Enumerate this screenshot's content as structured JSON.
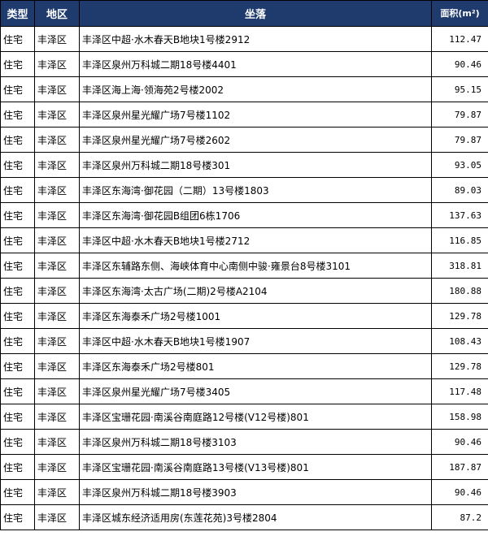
{
  "table": {
    "headers": [
      "类型",
      "地区",
      "坐落",
      "面积(m²)"
    ],
    "rows": [
      [
        "住宅",
        "丰泽区",
        "丰泽区中超·水木春天B地块1号楼2912",
        "112.47"
      ],
      [
        "住宅",
        "丰泽区",
        "丰泽区泉州万科城二期18号楼4401",
        "90.46"
      ],
      [
        "住宅",
        "丰泽区",
        "丰泽区海上海·领海苑2号楼2002",
        "95.15"
      ],
      [
        "住宅",
        "丰泽区",
        "丰泽区泉州星光耀广场7号楼1102",
        "79.87"
      ],
      [
        "住宅",
        "丰泽区",
        "丰泽区泉州星光耀广场7号楼2602",
        "79.87"
      ],
      [
        "住宅",
        "丰泽区",
        "丰泽区泉州万科城二期18号楼301",
        "93.05"
      ],
      [
        "住宅",
        "丰泽区",
        "丰泽区东海湾·御花园（二期）13号楼1803",
        "89.03"
      ],
      [
        "住宅",
        "丰泽区",
        "丰泽区东海湾·御花园B组团6栋1706",
        "137.63"
      ],
      [
        "住宅",
        "丰泽区",
        "丰泽区中超·水木春天B地块1号楼2712",
        "116.85"
      ],
      [
        "住宅",
        "丰泽区",
        "丰泽区东辅路东侧、海峡体育中心南侧中骏·雍景台8号楼3101",
        "318.81"
      ],
      [
        "住宅",
        "丰泽区",
        "丰泽区东海湾·太古广场(二期)2号楼A2104",
        "180.88"
      ],
      [
        "住宅",
        "丰泽区",
        "丰泽区东海泰禾广场2号楼1001",
        "129.78"
      ],
      [
        "住宅",
        "丰泽区",
        "丰泽区中超·水木春天B地块1号楼1907",
        "108.43"
      ],
      [
        "住宅",
        "丰泽区",
        "丰泽区东海泰禾广场2号楼801",
        "129.78"
      ],
      [
        "住宅",
        "丰泽区",
        "丰泽区泉州星光耀广场7号楼3405",
        "117.48"
      ],
      [
        "住宅",
        "丰泽区",
        "丰泽区宝珊花园·南溪谷南庭路12号楼(V12号楼)801",
        "158.98"
      ],
      [
        "住宅",
        "丰泽区",
        "丰泽区泉州万科城二期18号楼3103",
        "90.46"
      ],
      [
        "住宅",
        "丰泽区",
        "丰泽区宝珊花园·南溪谷南庭路13号楼(V13号楼)801",
        "187.87"
      ],
      [
        "住宅",
        "丰泽区",
        "丰泽区泉州万科城二期18号楼3903",
        "90.46"
      ],
      [
        "住宅",
        "丰泽区",
        "丰泽区城东经济适用房(东莲花苑)3号楼2804",
        "87.2"
      ]
    ]
  }
}
